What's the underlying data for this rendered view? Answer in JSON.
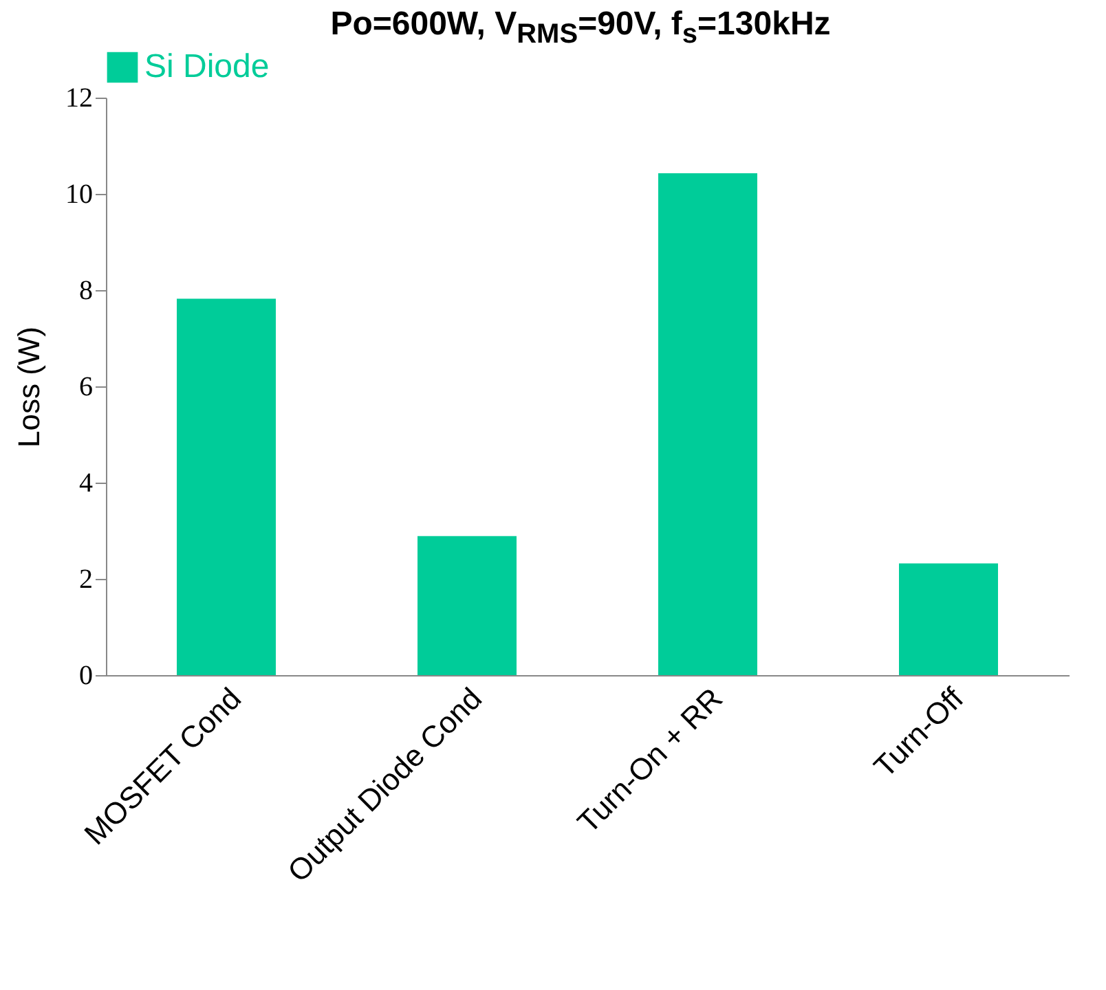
{
  "chart_data": {
    "type": "bar",
    "title": "Po=600W, V$_{RMS}$=90V, f$_{s}$=130kHz",
    "ylabel": "Loss (W)",
    "categories": [
      "MOSFET Cond",
      "Output Diode Cond",
      "Turn-On + RR",
      "Turn-Off"
    ],
    "series": [
      {
        "name": "Si Diode",
        "color": "#00cc99",
        "values": [
          7.82,
          2.89,
          10.43,
          2.32
        ]
      }
    ],
    "ylim": [
      0,
      12
    ],
    "yticks": [
      0,
      2,
      4,
      6,
      8,
      10,
      12
    ],
    "grid": false,
    "legend": "top"
  }
}
